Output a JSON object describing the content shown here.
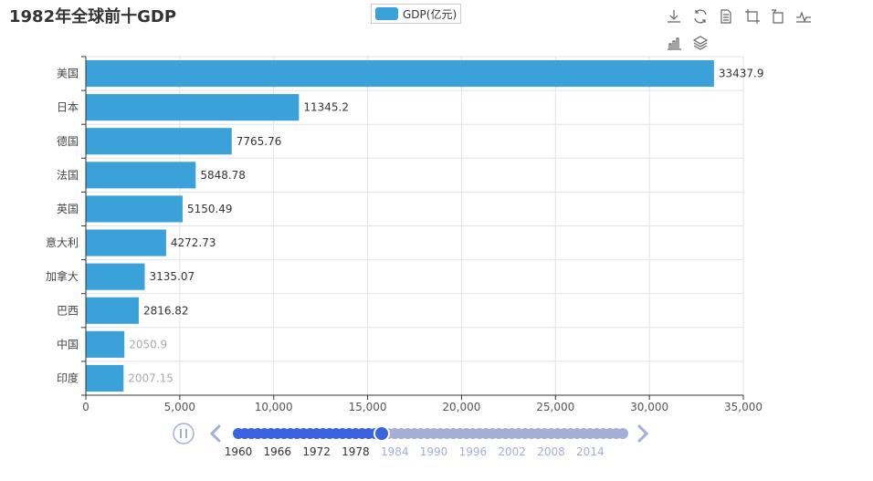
{
  "title": "1982年全球前十GDP",
  "legend": {
    "label": "GDP(亿元)"
  },
  "colors": {
    "bar": "#3aa1d9",
    "timeline_active": "#3a63e0",
    "timeline_inactive": "#a4afd6",
    "grid": "#e0e3ee"
  },
  "toolbox": [
    "download-icon",
    "refresh-icon",
    "data-view-icon",
    "zoom-icon",
    "zoom-reset-icon",
    "line-chart-icon",
    "bar-chart-icon",
    "stack-icon"
  ],
  "chart_data": {
    "type": "bar",
    "orientation": "horizontal",
    "title": "1982年全球前十GDP",
    "series": [
      {
        "name": "GDP(亿元)"
      }
    ],
    "categories": [
      "美国",
      "日本",
      "德国",
      "法国",
      "英国",
      "意大利",
      "加拿大",
      "巴西",
      "中国",
      "印度"
    ],
    "values": [
      33437.9,
      11345.2,
      7765.76,
      5848.78,
      5150.49,
      4272.73,
      3135.07,
      2816.82,
      2050.9,
      2007.15
    ],
    "labels": [
      "33437.9",
      "11345.2",
      "7765.76",
      "5848.78",
      "5150.49",
      "4272.73",
      "3135.07",
      "2816.82",
      "2050.9",
      "2007.15"
    ],
    "xlim": [
      0,
      35000
    ],
    "xticks": [
      0,
      5000,
      10000,
      15000,
      20000,
      25000,
      30000,
      35000
    ],
    "xtick_labels": [
      "0",
      "5,000",
      "10,000",
      "15,000",
      "20,000",
      "25,000",
      "30,000",
      "35,000"
    ]
  },
  "timeline": {
    "labels": [
      "1960",
      "1966",
      "1972",
      "1978",
      "1984",
      "1990",
      "1996",
      "2002",
      "2008",
      "2014"
    ],
    "start_year": 1960,
    "end_year": 2019,
    "current_year": 1982,
    "play_icon": "pause-icon",
    "prev_icon": "chevron-left-icon",
    "next_icon": "chevron-right-icon"
  }
}
